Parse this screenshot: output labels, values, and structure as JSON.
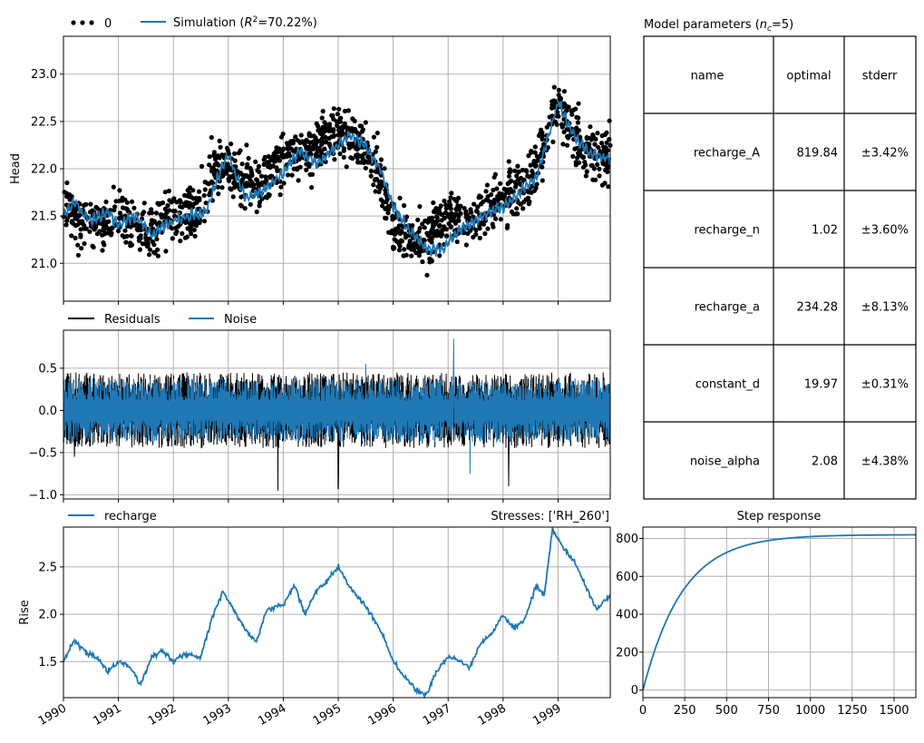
{
  "colors": {
    "observed": "#000000",
    "simulation": "#1f77b4",
    "residuals": "#000000",
    "noise": "#1f77b4",
    "grid": "#b0b0b0"
  },
  "chart_data": [
    {
      "type": "line",
      "panel": "head",
      "ylabel": "Head",
      "ylim": [
        20.6,
        23.4
      ],
      "xlim": [
        1990.0,
        1999.95
      ],
      "yticks": [
        "21.0",
        "21.5",
        "22.0",
        "22.5",
        "23.0"
      ],
      "grid": true,
      "legend": {
        "placement": "top-left",
        "entries": [
          "0",
          "Simulation (R²=70.22%)"
        ]
      },
      "legend_labels": {
        "obs": "0",
        "sim_prefix": "Simulation (",
        "sim_r": "R",
        "sim_sup": "2",
        "sim_suffix": "=70.22%)"
      },
      "series": [
        {
          "name": "0",
          "style": "scatter",
          "x": [
            1990.0,
            1990.5,
            1991.0,
            1991.5,
            1992.0,
            1992.5,
            1992.7,
            1993.0,
            1993.5,
            1994.0,
            1994.5,
            1995.0,
            1995.3,
            1995.7,
            1996.0,
            1996.5,
            1997.0,
            1997.5,
            1998.0,
            1998.5,
            1998.8,
            1999.0,
            1999.5,
            1999.95
          ],
          "y": [
            21.6,
            21.4,
            21.5,
            21.3,
            21.5,
            21.6,
            22.0,
            22.0,
            21.8,
            22.1,
            22.2,
            22.4,
            22.3,
            22.0,
            21.4,
            21.2,
            21.5,
            21.5,
            21.7,
            21.9,
            22.3,
            22.7,
            22.2,
            22.1
          ]
        },
        {
          "name": "Simulation (R²=70.22%)",
          "style": "line",
          "x": [
            1990.0,
            1990.2,
            1990.5,
            1990.8,
            1991.0,
            1991.3,
            1991.6,
            1992.0,
            1992.3,
            1992.6,
            1992.8,
            1993.0,
            1993.3,
            1993.6,
            1994.0,
            1994.3,
            1994.6,
            1994.9,
            1995.2,
            1995.5,
            1995.8,
            1996.0,
            1996.3,
            1996.6,
            1996.9,
            1997.2,
            1997.5,
            1997.8,
            1998.0,
            1998.3,
            1998.6,
            1998.8,
            1999.0,
            1999.3,
            1999.6,
            1999.95
          ],
          "y": [
            21.5,
            21.65,
            21.45,
            21.55,
            21.4,
            21.5,
            21.3,
            21.45,
            21.5,
            21.55,
            21.9,
            22.15,
            21.7,
            21.75,
            21.95,
            22.2,
            22.05,
            22.2,
            22.35,
            22.25,
            21.95,
            21.6,
            21.35,
            21.15,
            21.15,
            21.35,
            21.45,
            21.55,
            21.6,
            21.75,
            21.9,
            22.3,
            22.7,
            22.35,
            22.15,
            22.1
          ]
        }
      ]
    },
    {
      "type": "line",
      "panel": "residuals",
      "ylim": [
        -1.05,
        0.95
      ],
      "xlim": [
        1990.0,
        1999.95
      ],
      "yticks": [
        "−1.0",
        "−0.5",
        "0.0",
        "0.5"
      ],
      "grid": true,
      "legend": {
        "placement": "top-left",
        "entries": [
          "Residuals",
          "Noise"
        ]
      },
      "series": [
        {
          "name": "Residuals",
          "envelope": 0.45,
          "spikes": [
            [
              1993.9,
              -0.95
            ],
            [
              1995.0,
              -0.93
            ],
            [
              1998.1,
              -0.9
            ],
            [
              1990.2,
              -0.55
            ]
          ]
        },
        {
          "name": "Noise",
          "envelope": 0.38,
          "spikes": [
            [
              1997.1,
              0.85
            ],
            [
              1997.4,
              -0.75
            ],
            [
              1995.5,
              0.55
            ]
          ]
        }
      ]
    },
    {
      "type": "line",
      "panel": "contributions",
      "ylabel": "Rise",
      "ylim": [
        1.12,
        2.92
      ],
      "xlim": [
        1990.0,
        1999.95
      ],
      "yticks": [
        "1.5",
        "2.0",
        "2.5"
      ],
      "xticks": [
        "1990",
        "1991",
        "1992",
        "1993",
        "1994",
        "1995",
        "1996",
        "1997",
        "1998",
        "1999"
      ],
      "grid": true,
      "legend": {
        "placement": "top-left",
        "entries": [
          "recharge"
        ]
      },
      "title_right": "Stresses: ['RH_260']",
      "series": [
        {
          "name": "recharge",
          "x": [
            1990.0,
            1990.2,
            1990.4,
            1990.6,
            1990.8,
            1991.0,
            1991.2,
            1991.4,
            1991.6,
            1991.8,
            1992.0,
            1992.2,
            1992.5,
            1992.7,
            1992.9,
            1993.1,
            1993.3,
            1993.5,
            1993.7,
            1994.0,
            1994.2,
            1994.4,
            1994.6,
            1994.8,
            1995.0,
            1995.2,
            1995.4,
            1995.6,
            1995.8,
            1996.0,
            1996.2,
            1996.4,
            1996.6,
            1996.8,
            1997.0,
            1997.2,
            1997.4,
            1997.6,
            1997.8,
            1998.0,
            1998.2,
            1998.4,
            1998.6,
            1998.75,
            1998.9,
            1999.1,
            1999.3,
            1999.5,
            1999.7,
            1999.95
          ],
          "y": [
            1.5,
            1.72,
            1.6,
            1.55,
            1.4,
            1.5,
            1.45,
            1.25,
            1.55,
            1.62,
            1.5,
            1.58,
            1.55,
            1.95,
            2.25,
            2.05,
            1.85,
            1.7,
            2.05,
            2.1,
            2.3,
            2.0,
            2.25,
            2.35,
            2.5,
            2.3,
            2.15,
            2.0,
            1.8,
            1.5,
            1.35,
            1.2,
            1.15,
            1.4,
            1.55,
            1.5,
            1.45,
            1.7,
            1.8,
            2.0,
            1.85,
            1.95,
            2.3,
            2.2,
            2.9,
            2.7,
            2.55,
            2.3,
            2.05,
            2.2
          ]
        }
      ]
    },
    {
      "type": "line",
      "panel": "step-response",
      "title": "Step response",
      "xlim": [
        0,
        1630
      ],
      "ylim": [
        -40,
        860
      ],
      "xticks": [
        0,
        250,
        500,
        750,
        1000,
        1250,
        1500
      ],
      "yticks": [
        0,
        200,
        400,
        600,
        800
      ],
      "grid": true,
      "series": [
        {
          "name": "recharge",
          "A": 819.84,
          "a": 234.28,
          "n": 1.02
        }
      ]
    },
    {
      "type": "table",
      "panel": "parameters",
      "title_prefix": "Model parameters (",
      "title_var": "n",
      "title_sub": "c",
      "title_suffix": "=5)",
      "columns": [
        "name",
        "optimal",
        "stderr"
      ],
      "rows": [
        [
          "recharge_A",
          "819.84",
          "±3.42%"
        ],
        [
          "recharge_n",
          "1.02",
          "±3.60%"
        ],
        [
          "recharge_a",
          "234.28",
          "±8.13%"
        ],
        [
          "constant_d",
          "19.97",
          "±0.31%"
        ],
        [
          "noise_alpha",
          "2.08",
          "±4.38%"
        ]
      ]
    }
  ]
}
